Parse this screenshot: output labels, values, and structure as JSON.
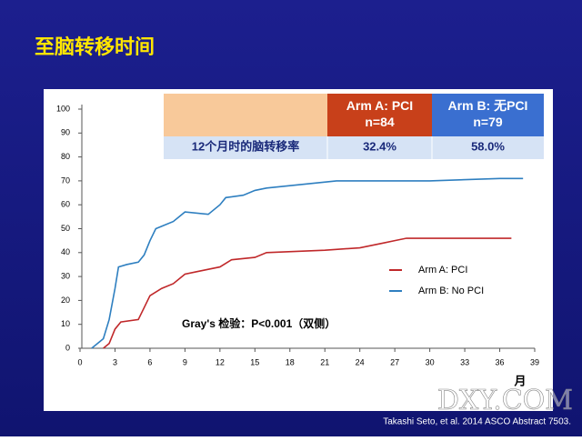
{
  "title": "至脑转移时间",
  "table": {
    "header": [
      "",
      "Arm A: PCI\nn=84",
      "Arm B: 无PCI\nn=79"
    ],
    "rows": [
      [
        "12个月时的脑转移率",
        "32.4%",
        "58.0%"
      ]
    ]
  },
  "source": "Takashi Seto, et  al. 2014 ASCO Abstract 7503.",
  "watermark": "DXY.COM",
  "chart_data": {
    "type": "line",
    "annotation": "Gray's 检验：P<0.001（双侧）",
    "xlabel": "月",
    "xlim": [
      0,
      39
    ],
    "xticks": [
      0,
      3,
      6,
      9,
      12,
      15,
      18,
      21,
      24,
      27,
      30,
      33,
      36,
      39
    ],
    "ylim": [
      0,
      100
    ],
    "yticks": [
      0,
      10,
      20,
      30,
      40,
      50,
      60,
      70,
      80,
      90,
      100
    ],
    "legend": "right",
    "series": [
      {
        "name": "Arm A: PCI",
        "color": "#c0282a",
        "x": [
          2,
          2.5,
          3,
          3.5,
          5,
          5.5,
          6,
          7,
          8,
          9,
          10,
          11,
          12,
          13,
          15,
          16,
          21,
          24,
          26,
          27,
          28,
          37
        ],
        "values": [
          0,
          2,
          8,
          11,
          12,
          17,
          22,
          25,
          27,
          31,
          32,
          33,
          34,
          37,
          38,
          40,
          41,
          42,
          44,
          45,
          46,
          46
        ]
      },
      {
        "name": "Arm B: No PCI",
        "color": "#2e7fc0",
        "x": [
          1,
          1.5,
          2,
          2.5,
          3,
          3.3,
          4,
          5,
          5.5,
          6,
          6.5,
          7,
          8,
          8.5,
          9,
          11,
          12,
          12.5,
          14,
          15,
          16,
          18,
          20,
          22,
          30,
          36,
          38
        ],
        "values": [
          0,
          2,
          4,
          12,
          25,
          34,
          35,
          36,
          39,
          45,
          50,
          51,
          53,
          55,
          57,
          56,
          60,
          63,
          64,
          66,
          67,
          68,
          69,
          70,
          70,
          71,
          71
        ]
      }
    ]
  }
}
